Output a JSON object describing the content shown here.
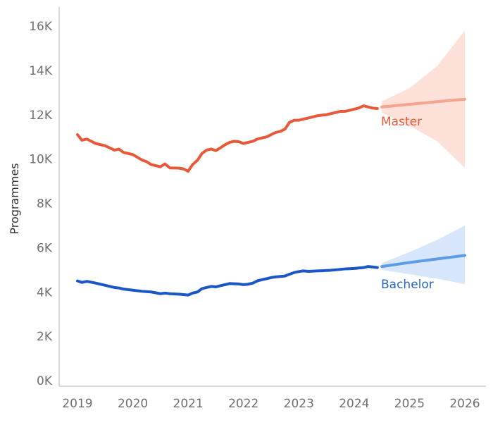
{
  "chart_data": {
    "type": "line",
    "title": "",
    "xlabel": "",
    "ylabel": "Programmes",
    "xlim": [
      2019,
      2026
    ],
    "ylim": [
      0,
      16500
    ],
    "x_ticks": [
      "2019",
      "2020",
      "2021",
      "2022",
      "2023",
      "2024",
      "2025",
      "2026"
    ],
    "y_ticks": [
      "0K",
      "2K",
      "4K",
      "6K",
      "8K",
      "10K",
      "12K",
      "14K",
      "16K"
    ],
    "y_tick_values": [
      0,
      2000,
      4000,
      6000,
      8000,
      10000,
      12000,
      14000,
      16000
    ],
    "grid": false,
    "legend": "direct labels at series end",
    "series": [
      {
        "name": "Master",
        "color": "#e8593a",
        "x": [
          2019.0,
          2019.08,
          2019.17,
          2019.33,
          2019.5,
          2019.67,
          2019.75,
          2019.83,
          2020.0,
          2020.17,
          2020.25,
          2020.33,
          2020.5,
          2020.58,
          2020.67,
          2020.83,
          2020.92,
          2021.0,
          2021.08,
          2021.17,
          2021.25,
          2021.33,
          2021.42,
          2021.5,
          2021.58,
          2021.67,
          2021.75,
          2021.83,
          2021.92,
          2022.0,
          2022.08,
          2022.17,
          2022.25,
          2022.33,
          2022.42,
          2022.5,
          2022.58,
          2022.67,
          2022.75,
          2022.83,
          2022.92,
          2023.0,
          2023.08,
          2023.17,
          2023.25,
          2023.33,
          2023.42,
          2023.5,
          2023.58,
          2023.67,
          2023.75,
          2023.83,
          2023.92,
          2024.0,
          2024.08,
          2024.17,
          2024.25,
          2024.33,
          2024.42
        ],
        "values": [
          11100,
          10850,
          10900,
          10700,
          10600,
          10400,
          10450,
          10300,
          10200,
          9950,
          9880,
          9750,
          9650,
          9780,
          9600,
          9590,
          9550,
          9450,
          9750,
          9950,
          10250,
          10400,
          10450,
          10380,
          10500,
          10650,
          10750,
          10800,
          10780,
          10700,
          10750,
          10800,
          10900,
          10950,
          11000,
          11100,
          11200,
          11250,
          11350,
          11650,
          11750,
          11750,
          11800,
          11850,
          11900,
          11950,
          11980,
          12000,
          12050,
          12100,
          12150,
          12150,
          12200,
          12250,
          12300,
          12400,
          12350,
          12300,
          12280
        ]
      },
      {
        "name": "Bachelor",
        "color": "#1a56c8",
        "x": [
          2019.0,
          2019.08,
          2019.17,
          2019.33,
          2019.5,
          2019.67,
          2019.75,
          2019.83,
          2020.0,
          2020.17,
          2020.33,
          2020.42,
          2020.5,
          2020.58,
          2020.67,
          2020.83,
          2020.92,
          2021.0,
          2021.08,
          2021.17,
          2021.25,
          2021.33,
          2021.42,
          2021.5,
          2021.58,
          2021.67,
          2021.75,
          2021.83,
          2021.92,
          2022.0,
          2022.08,
          2022.17,
          2022.25,
          2022.33,
          2022.42,
          2022.5,
          2022.58,
          2022.67,
          2022.75,
          2022.83,
          2022.92,
          2023.0,
          2023.08,
          2023.17,
          2023.25,
          2023.33,
          2023.42,
          2023.5,
          2023.58,
          2023.67,
          2023.75,
          2023.83,
          2023.92,
          2024.0,
          2024.08,
          2024.17,
          2024.25,
          2024.33,
          2024.42
        ],
        "values": [
          4500,
          4430,
          4480,
          4400,
          4300,
          4200,
          4180,
          4130,
          4080,
          4030,
          4000,
          3960,
          3920,
          3950,
          3920,
          3900,
          3880,
          3860,
          3950,
          4000,
          4150,
          4200,
          4250,
          4230,
          4280,
          4330,
          4380,
          4370,
          4360,
          4330,
          4350,
          4400,
          4500,
          4550,
          4600,
          4650,
          4680,
          4700,
          4720,
          4800,
          4880,
          4920,
          4950,
          4930,
          4940,
          4950,
          4960,
          4970,
          4980,
          5000,
          5020,
          5040,
          5050,
          5060,
          5080,
          5100,
          5150,
          5130,
          5100
        ]
      }
    ],
    "forecasts": [
      {
        "name": "Master",
        "color": "#f4a48f",
        "band_color": "#fcd7cc",
        "x": [
          2024.5,
          2025.0,
          2025.5,
          2026.0
        ],
        "values": [
          12350,
          12470,
          12590,
          12700
        ],
        "upper": [
          12600,
          13200,
          14200,
          15800
        ],
        "lower": [
          12100,
          11500,
          10800,
          9600
        ]
      },
      {
        "name": "Bachelor",
        "color": "#5c9be6",
        "band_color": "#c9defa",
        "x": [
          2024.5,
          2025.0,
          2025.5,
          2026.0
        ],
        "values": [
          5150,
          5330,
          5490,
          5650
        ],
        "upper": [
          5300,
          5800,
          6350,
          7000
        ],
        "lower": [
          5000,
          4800,
          4600,
          4350
        ]
      }
    ]
  }
}
